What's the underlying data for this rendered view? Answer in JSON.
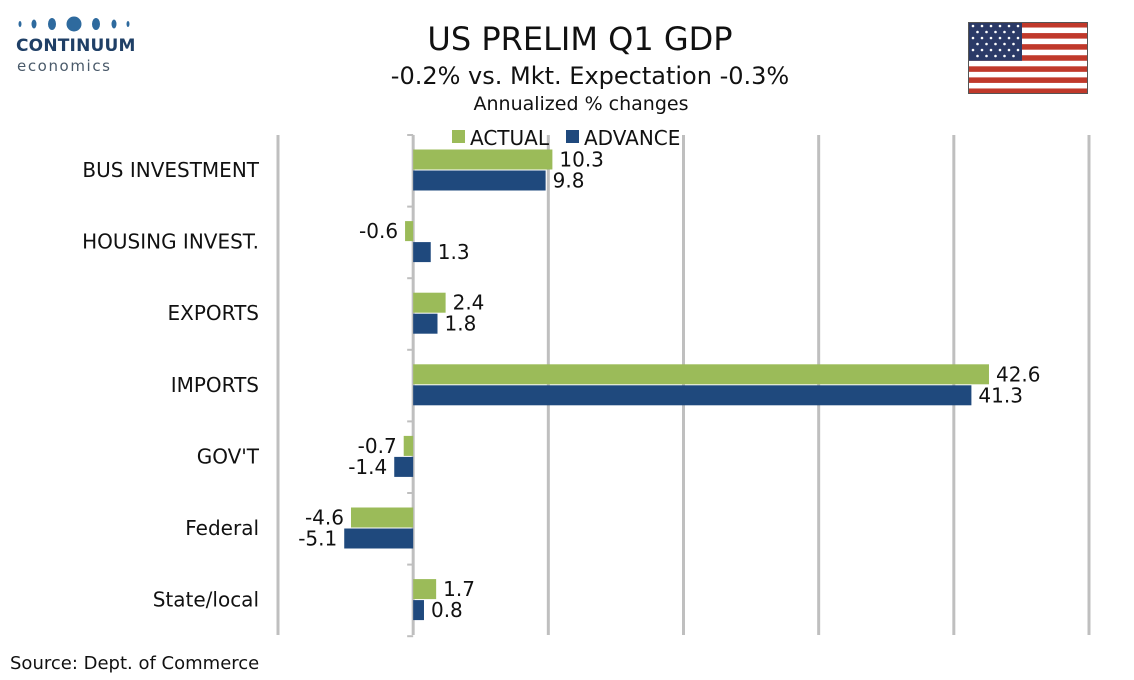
{
  "brand": {
    "name": "CONTINUUM",
    "sub": "economics"
  },
  "title": "US PRELIM Q1 GDP",
  "subtitle": "-0.2% vs. Mkt. Expectation -0.3%",
  "subsubtitle": "Annualized % changes",
  "source": "Source: Dept. of Commerce",
  "flag_icon": "us-flag-icon",
  "colors": {
    "actual": "#9bbb59",
    "advance": "#1f497d",
    "grid": "#bfbfbf",
    "brand": "#1f3f66"
  },
  "chart_data": {
    "type": "bar",
    "orientation": "horizontal",
    "categories": [
      "BUS INVESTMENT",
      "HOUSING INVEST.",
      "EXPORTS",
      "IMPORTS",
      "GOV'T",
      "Federal",
      "State/local"
    ],
    "series": [
      {
        "name": "ACTUAL",
        "values": [
          10.3,
          -0.6,
          2.4,
          42.6,
          -0.7,
          -4.6,
          1.7
        ]
      },
      {
        "name": "ADVANCE",
        "values": [
          9.8,
          1.3,
          1.8,
          41.3,
          -1.4,
          -5.1,
          0.8
        ]
      }
    ],
    "xlim": [
      -10,
      50
    ],
    "grid": true,
    "legend_position": "top",
    "axis_labels_shown": false
  }
}
